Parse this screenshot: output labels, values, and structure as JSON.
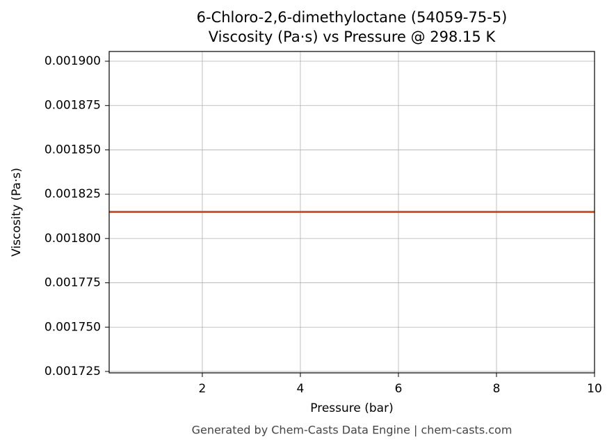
{
  "chart_data": {
    "type": "line",
    "title": "6-Chloro-2,6-dimethyloctane (54059-75-5)",
    "subtitle": "Viscosity (Pa·s) vs Pressure @ 298.15 K",
    "x_label": "Pressure (bar)",
    "y_label": "Viscosity (Pa·s)",
    "footer": "Generated by Chem-Casts Data Engine | chem-casts.com",
    "x": [
      0.1,
      10
    ],
    "series": [
      {
        "name": "Viscosity",
        "color": "#c8522a",
        "values": [
          0.001815,
          0.001815
        ]
      }
    ],
    "xlim": [
      0.1,
      10
    ],
    "xticks": [
      2,
      4,
      6,
      8,
      10
    ],
    "ylim": [
      0.0017242,
      0.0019055
    ],
    "yticks": [
      {
        "value": 0.001725,
        "label": "0.001725"
      },
      {
        "value": 0.00175,
        "label": "0.001750"
      },
      {
        "value": 0.001775,
        "label": "0.001775"
      },
      {
        "value": 0.0018,
        "label": "0.001800"
      },
      {
        "value": 0.001825,
        "label": "0.001825"
      },
      {
        "value": 0.00185,
        "label": "0.001850"
      },
      {
        "value": 0.001875,
        "label": "0.001875"
      },
      {
        "value": 0.0019,
        "label": "0.001900"
      }
    ],
    "grid": true
  }
}
